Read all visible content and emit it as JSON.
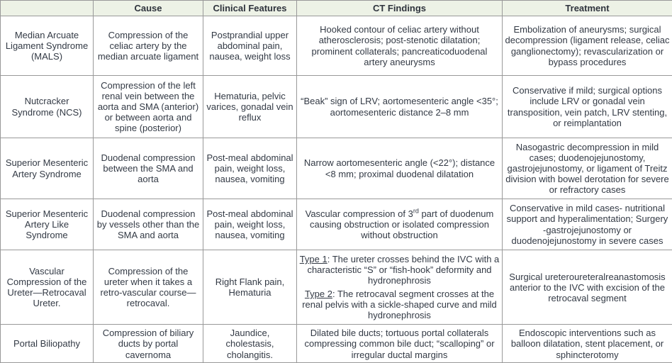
{
  "table": {
    "colors": {
      "header_bg": "#edf2e6",
      "border": "#999999",
      "text": "#333a45"
    },
    "headers": {
      "corner": "",
      "cause": "Cause",
      "clinical_features": "Clinical Features",
      "ct_findings": "CT Findings",
      "treatment": "Treatment"
    },
    "rows": [
      {
        "name": "Median Arcuate Ligament Syndrome (MALS)",
        "cause": "Compression of the celiac artery by the median arcuate ligament",
        "clinical": "Postprandial upper abdominal pain, nausea, weight loss",
        "ct": "Hooked contour of celiac artery without atherosclerosis; post-stenotic dilatation; prominent collaterals; pancreaticoduodenal artery aneurysms",
        "treatment": "Embolization of aneurysms; surgical decompression (ligament release, celiac ganglionectomy); revascularization or bypass procedures"
      },
      {
        "name": "Nutcracker Syndrome (NCS)",
        "cause": "Compression of the left renal vein between the aorta and SMA (anterior) or between aorta and spine (posterior)",
        "clinical": "Hematuria, pelvic varices, gonadal vein reflux",
        "ct": "“Beak” sign of LRV; aortomesenteric angle <35°; aortomesenteric distance 2–8 mm",
        "treatment": "Conservative if mild; surgical options include LRV or gonadal vein transposition, vein patch, LRV stenting, or reimplantation"
      },
      {
        "name": "Superior Mesenteric Artery Syndrome",
        "cause": "Duodenal compression between the SMA and aorta",
        "clinical": "Post-meal abdominal pain, weight loss, nausea, vomiting",
        "ct": "Narrow aortomesenteric angle (<22°); distance <8 mm; proximal duodenal dilatation",
        "treatment": "Nasogastric decompression in mild cases; duodenojejunostomy, gastrojejunostomy, or ligament of Treitz division with bowel derotation for severe or refractory cases"
      },
      {
        "name": "Superior Mesenteric Artery Like Syndrome",
        "cause": "Duodenal compression by vessels other than the SMA and aorta",
        "clinical": "Post-meal abdominal pain, weight loss, nausea, vomiting",
        "ct_prefix": "Vascular compression of 3",
        "ct_sup": "rd",
        "ct_suffix": " part of duodenum causing obstruction or isolated compression without obstruction",
        "treatment": "Conservative in mild cases- nutritional support and hyperalimentation; Surgery -gastrojejunostomy or duodenojejunostomy in severe cases"
      },
      {
        "name": "Vascular Compression of the Ureter—Retrocaval Ureter.",
        "cause": "Compression of the ureter when it takes a retro-vascular course—retrocaval.",
        "clinical": "Right Flank pain, Hematuria",
        "ct_type1_label": "Type 1",
        "ct_type1_text": ": The ureter crosses behind the IVC with a characteristic “S” or “fish-hook” deformity and hydronephrosis",
        "ct_type2_label": "Type 2",
        "ct_type2_text": ": The retrocaval segment crosses at the renal pelvis with a sickle-shaped curve and mild hydronephrosis",
        "treatment": "Surgical ureteroureteralreanastomosis anterior to the IVC with excision of the retrocaval segment"
      },
      {
        "name": "Portal Biliopathy",
        "cause": "Compression of biliary ducts by portal cavernoma",
        "clinical": "Jaundice, cholestasis, cholangitis.",
        "ct": "Dilated bile ducts; tortuous portal collaterals compressing common bile duct; “scalloping” or irregular ductal margins",
        "treatment": "Endoscopic interventions such as balloon dilatation, stent placement, or sphincterotomy"
      }
    ]
  }
}
